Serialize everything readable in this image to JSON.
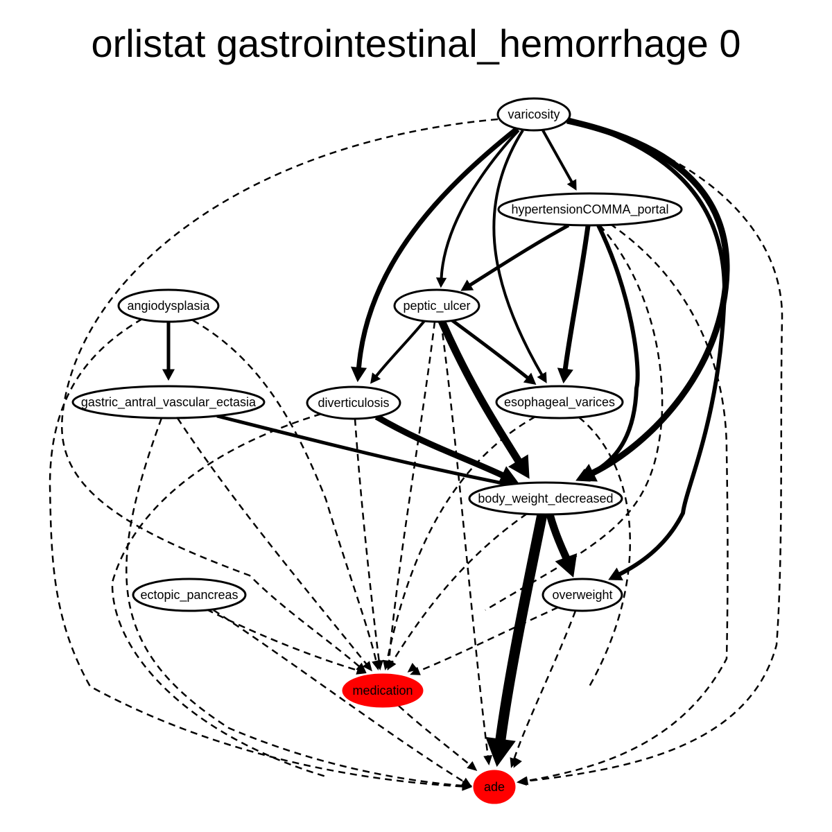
{
  "title": "orlistat gastrointestinal_hemorrhage 0",
  "colors": {
    "highlight": "#ff0000",
    "edge": "#000000",
    "node_fill": "#ffffff"
  },
  "nodes": {
    "varicosity": {
      "label": "varicosity",
      "highlight": false
    },
    "hypertension_portal": {
      "label": "hypertensionCOMMA_portal",
      "highlight": false
    },
    "angiodysplasia": {
      "label": "angiodysplasia",
      "highlight": false
    },
    "peptic_ulcer": {
      "label": "peptic_ulcer",
      "highlight": false
    },
    "gastric_antral_vascular_ectasia": {
      "label": "gastric_antral_vascular_ectasia",
      "highlight": false
    },
    "diverticulosis": {
      "label": "diverticulosis",
      "highlight": false
    },
    "esophageal_varices": {
      "label": "esophageal_varices",
      "highlight": false
    },
    "body_weight_decreased": {
      "label": "body_weight_decreased",
      "highlight": false
    },
    "ectopic_pancreas": {
      "label": "ectopic_pancreas",
      "highlight": false
    },
    "overweight": {
      "label": "overweight",
      "highlight": false
    },
    "medication": {
      "label": "medication",
      "highlight": true
    },
    "ade": {
      "label": "ade",
      "highlight": true
    }
  },
  "edges": [
    {
      "from": "varicosity",
      "to": "hypertension_portal",
      "style": "solid",
      "weight": 4
    },
    {
      "from": "varicosity",
      "to": "peptic_ulcer",
      "style": "solid",
      "weight": 4
    },
    {
      "from": "varicosity",
      "to": "diverticulosis",
      "style": "solid",
      "weight": 7
    },
    {
      "from": "varicosity",
      "to": "esophageal_varices",
      "style": "solid",
      "weight": 4
    },
    {
      "from": "varicosity",
      "to": "body_weight_decreased",
      "style": "solid",
      "weight": 9
    },
    {
      "from": "varicosity",
      "to": "overweight",
      "style": "solid",
      "weight": 6
    },
    {
      "from": "varicosity",
      "to": "medication",
      "style": "dashed",
      "weight": 2.5
    },
    {
      "from": "varicosity",
      "to": "ade",
      "style": "dashed",
      "weight": 2.5
    },
    {
      "from": "hypertension_portal",
      "to": "peptic_ulcer",
      "style": "solid",
      "weight": 5
    },
    {
      "from": "hypertension_portal",
      "to": "esophageal_varices",
      "style": "solid",
      "weight": 7
    },
    {
      "from": "hypertension_portal",
      "to": "body_weight_decreased",
      "style": "solid",
      "weight": 6
    },
    {
      "from": "hypertension_portal",
      "to": "medication",
      "style": "dashed",
      "weight": 2.5
    },
    {
      "from": "hypertension_portal",
      "to": "ade",
      "style": "dashed",
      "weight": 2.5
    },
    {
      "from": "angiodysplasia",
      "to": "gastric_antral_vascular_ectasia",
      "style": "solid",
      "weight": 5
    },
    {
      "from": "angiodysplasia",
      "to": "medication",
      "style": "dashed",
      "weight": 2.5
    },
    {
      "from": "angiodysplasia",
      "to": "ade",
      "style": "dashed",
      "weight": 2.5
    },
    {
      "from": "peptic_ulcer",
      "to": "diverticulosis",
      "style": "solid",
      "weight": 4
    },
    {
      "from": "peptic_ulcer",
      "to": "esophageal_varices",
      "style": "solid",
      "weight": 5
    },
    {
      "from": "peptic_ulcer",
      "to": "body_weight_decreased",
      "style": "solid",
      "weight": 11
    },
    {
      "from": "peptic_ulcer",
      "to": "medication",
      "style": "dashed",
      "weight": 2.5
    },
    {
      "from": "peptic_ulcer",
      "to": "ade",
      "style": "dashed",
      "weight": 2.5
    },
    {
      "from": "gastric_antral_vascular_ectasia",
      "to": "body_weight_decreased",
      "style": "solid",
      "weight": 5
    },
    {
      "from": "gastric_antral_vascular_ectasia",
      "to": "medication",
      "style": "dashed",
      "weight": 2.5
    },
    {
      "from": "gastric_antral_vascular_ectasia",
      "to": "ade",
      "style": "dashed",
      "weight": 2.5
    },
    {
      "from": "diverticulosis",
      "to": "body_weight_decreased",
      "style": "solid",
      "weight": 9
    },
    {
      "from": "diverticulosis",
      "to": "medication",
      "style": "dashed",
      "weight": 2.5
    },
    {
      "from": "diverticulosis",
      "to": "ade",
      "style": "dashed",
      "weight": 2.5
    },
    {
      "from": "esophageal_varices",
      "to": "medication",
      "style": "dashed",
      "weight": 2.5
    },
    {
      "from": "esophageal_varices",
      "to": "ade",
      "style": "dashed",
      "weight": 2.5
    },
    {
      "from": "body_weight_decreased",
      "to": "overweight",
      "style": "solid",
      "weight": 11
    },
    {
      "from": "body_weight_decreased",
      "to": "ade",
      "style": "solid",
      "weight": 15
    },
    {
      "from": "body_weight_decreased",
      "to": "medication",
      "style": "dashed",
      "weight": 2.5
    },
    {
      "from": "ectopic_pancreas",
      "to": "medication",
      "style": "dashed",
      "weight": 2.5
    },
    {
      "from": "ectopic_pancreas",
      "to": "ade",
      "style": "dashed",
      "weight": 2.5
    },
    {
      "from": "overweight",
      "to": "medication",
      "style": "dashed",
      "weight": 2.5
    },
    {
      "from": "overweight",
      "to": "ade",
      "style": "dashed",
      "weight": 2.5
    },
    {
      "from": "medication",
      "to": "ade",
      "style": "dashed",
      "weight": 2.5
    }
  ]
}
